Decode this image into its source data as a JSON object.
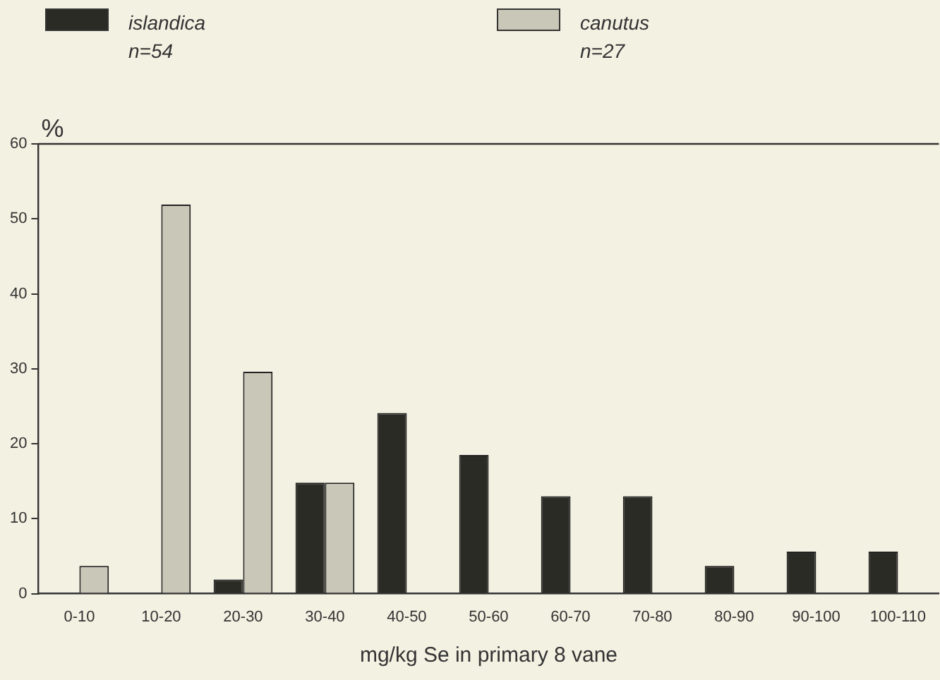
{
  "chart_data": {
    "type": "bar",
    "xlabel": "mg/kg Se in primary 8 vane",
    "ylabel": "%",
    "categories": [
      "0-10",
      "10-20",
      "20-30",
      "30-40",
      "40-50",
      "50-60",
      "60-70",
      "70-80",
      "80-90",
      "90-100",
      "100-110"
    ],
    "series": [
      {
        "name": "islandica",
        "color": "#2b2b26",
        "values": [
          null,
          null,
          1.9,
          14.8,
          24.1,
          18.5,
          13,
          13,
          3.7,
          5.6,
          5.6
        ]
      },
      {
        "name": "canutus",
        "color": "#c9c7b8",
        "values": [
          3.7,
          51.9,
          29.6,
          14.8,
          null,
          null,
          null,
          null,
          null,
          null,
          null
        ]
      }
    ],
    "annotations": [
      "n=54",
      "n=27"
    ],
    "ylim": [
      0,
      60
    ],
    "yticks": [
      0,
      10,
      20,
      30,
      40,
      50,
      60
    ],
    "grid": false,
    "legend": "top"
  }
}
